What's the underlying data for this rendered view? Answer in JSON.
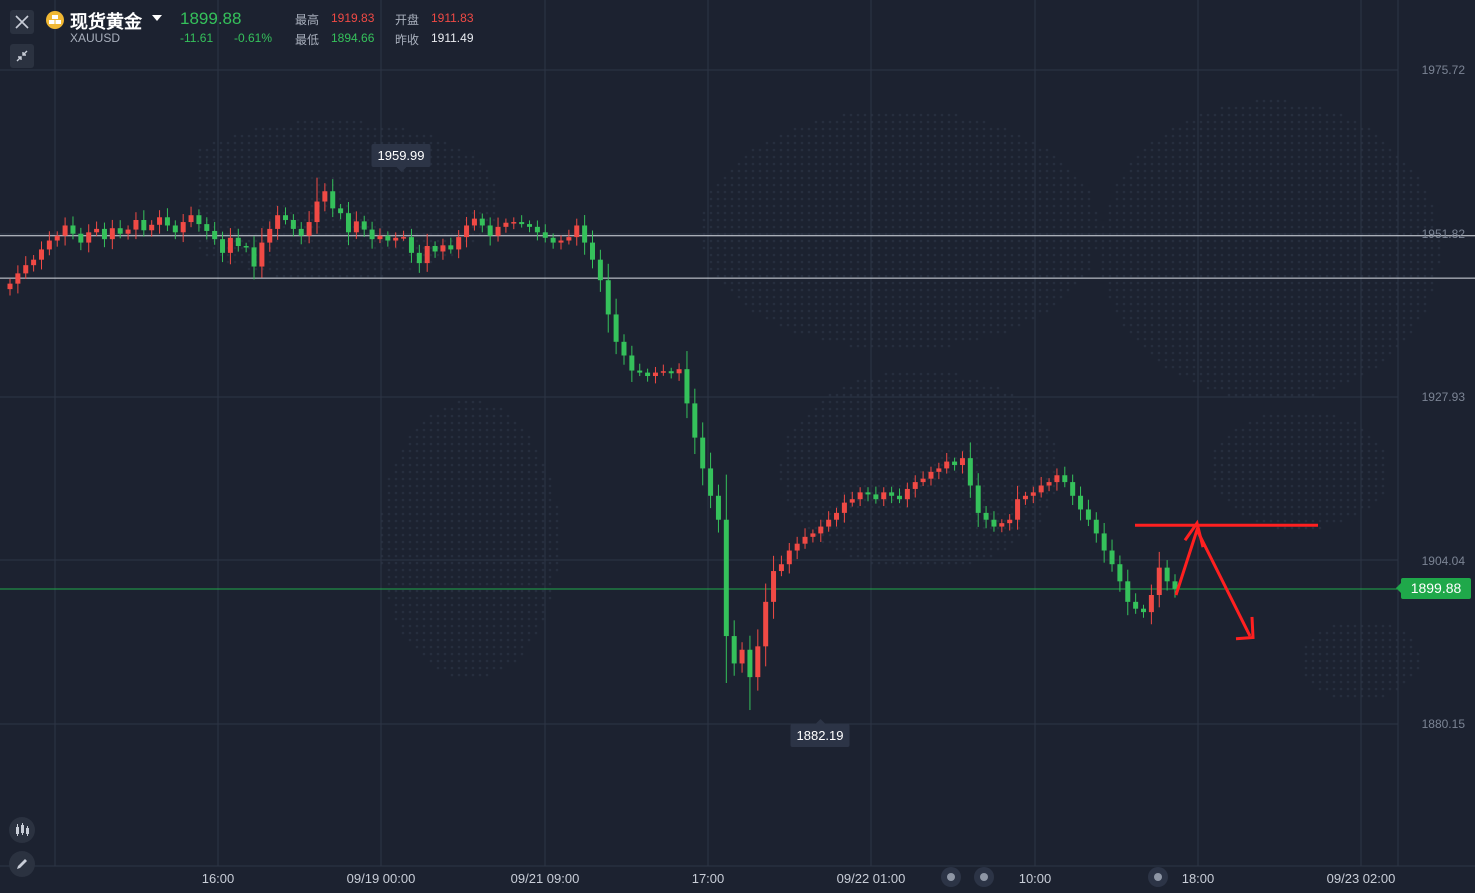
{
  "header": {
    "title": "现货黄金",
    "symbol": "XAUUSD",
    "last_price": "1899.88",
    "change": "-11.61",
    "change_pct": "-0.61%",
    "high_label": "最高",
    "high_value": "1919.83",
    "open_label": "开盘",
    "open_value": "1911.83",
    "low_label": "最低",
    "low_value": "1894.66",
    "prev_close_label": "昨收",
    "prev_close_value": "1911.49"
  },
  "price_tag": "1899.88",
  "high_marker": "1959.99",
  "low_marker": "1882.19",
  "icons": {
    "close": "close-icon",
    "collapse": "collapse-arrows-icon",
    "gold": "gold-bars-icon",
    "indicator": "candlestick-indicator-icon",
    "draw": "pencil-icon"
  },
  "colors": {
    "background": "#1c2230",
    "up": "#f04a45",
    "down": "#35c15b",
    "annotation": "#ff2020",
    "current_price": "#1fa84a"
  },
  "chart_data": {
    "type": "candlestick",
    "y_ticks": [
      "1975.72",
      "1951.82",
      "1927.93",
      "1904.04",
      "1880.15"
    ],
    "x_ticks": [
      "16:00",
      "09/19 00:00",
      "09/21 09:00",
      "17:00",
      "09/22 01:00",
      "10:00",
      "18:00",
      "09/23 02:00"
    ],
    "ylim": [
      1870,
      1982
    ],
    "reference_lines": [
      1951.5,
      1945.3
    ],
    "current_price": 1899.88,
    "high": 1959.99,
    "low": 1882.19,
    "closes": [
      1944.5,
      1946.0,
      1947.2,
      1948.0,
      1949.5,
      1950.8,
      1951.5,
      1953.0,
      1951.8,
      1950.5,
      1952.0,
      1952.5,
      1951.0,
      1952.6,
      1951.8,
      1952.4,
      1953.8,
      1952.3,
      1953.1,
      1954.2,
      1953.0,
      1952.0,
      1953.5,
      1954.5,
      1953.2,
      1952.2,
      1951.0,
      1949.0,
      1951.2,
      1950.0,
      1949.8,
      1947.0,
      1950.5,
      1952.5,
      1954.5,
      1953.8,
      1952.5,
      1951.5,
      1953.5,
      1956.5,
      1958.0,
      1955.5,
      1954.8,
      1952.0,
      1953.6,
      1952.4,
      1951.0,
      1951.5,
      1950.8,
      1951.2,
      1951.3,
      1949.0,
      1947.5,
      1950.0,
      1949.2,
      1950.1,
      1949.5,
      1951.3,
      1953.0,
      1954.0,
      1953.0,
      1951.5,
      1952.8,
      1953.4,
      1953.5,
      1953.2,
      1952.8,
      1952.0,
      1951.2,
      1950.5,
      1950.8,
      1951.3,
      1953.0,
      1950.5,
      1948.0,
      1945.0,
      1940.0,
      1936.0,
      1934.0,
      1931.8,
      1931.5,
      1931.0,
      1931.5,
      1931.7,
      1931.4,
      1932.0,
      1927.0,
      1922.0,
      1917.5,
      1913.5,
      1910.0,
      1893.0,
      1889.0,
      1891.0,
      1887.0,
      1891.5,
      1898.0,
      1902.5,
      1903.5,
      1905.5,
      1906.5,
      1907.5,
      1908.0,
      1909.0,
      1910.0,
      1911.0,
      1912.5,
      1913.0,
      1914.0,
      1913.7,
      1913.0,
      1914.0,
      1913.5,
      1913.0,
      1914.5,
      1915.5,
      1916.0,
      1917.0,
      1917.5,
      1918.5,
      1918.0,
      1919.0,
      1915.0,
      1911.0,
      1910.0,
      1909.0,
      1909.5,
      1910.0,
      1913.0,
      1913.5,
      1914.0,
      1915.0,
      1915.5,
      1916.5,
      1915.5,
      1913.5,
      1911.5,
      1910.0,
      1908.0,
      1905.5,
      1903.5,
      1901.0,
      1898.0,
      1897.0,
      1896.5,
      1899.0,
      1903.0,
      1901.0,
      1899.9
    ]
  }
}
